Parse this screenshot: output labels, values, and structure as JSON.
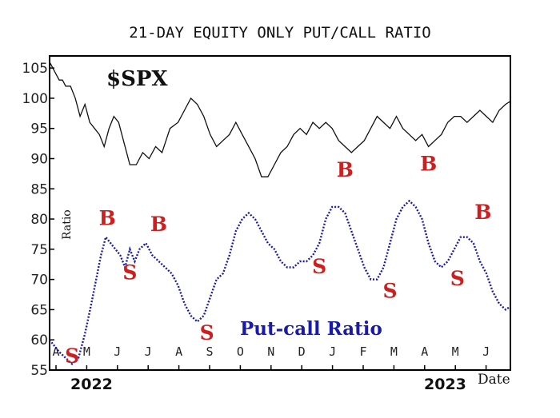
{
  "chart_data": {
    "type": "line",
    "title": "21-DAY EQUITY ONLY PUT/CALL RATIO",
    "ylabel": "Ratio",
    "xlabel": "Date",
    "ylim": [
      55,
      107
    ],
    "yticks": [
      55,
      60,
      65,
      70,
      75,
      80,
      85,
      90,
      95,
      100,
      105
    ],
    "months": [
      "A",
      "M",
      "J",
      "J",
      "A",
      "S",
      "O",
      "N",
      "D",
      "J",
      "F",
      "M",
      "A",
      "M",
      "J"
    ],
    "years": [
      "2022",
      "2023"
    ],
    "grid": false,
    "series": [
      {
        "name": "$SPX",
        "color": "#111111",
        "x": [
          0,
          2,
          4,
          6,
          8,
          10,
          13,
          16,
          19,
          22,
          25,
          28,
          31,
          34,
          37,
          40,
          43,
          46,
          50,
          54,
          58,
          62,
          66,
          70,
          75,
          80,
          84,
          88,
          92,
          96,
          100,
          104,
          108,
          112,
          116,
          120,
          124,
          128,
          132,
          136,
          140,
          144,
          148,
          152,
          156,
          160,
          164,
          168,
          172,
          176,
          180,
          184,
          188,
          192,
          196,
          200,
          204,
          208,
          212,
          216,
          220,
          224,
          228,
          232,
          236,
          240,
          244,
          248,
          252,
          256,
          260,
          264,
          268,
          272,
          276,
          280,
          284,
          287
        ],
        "values": [
          106,
          105,
          104,
          103,
          103,
          102,
          102,
          100,
          97,
          99,
          96,
          95,
          94,
          92,
          95,
          97,
          96,
          93,
          89,
          89,
          91,
          90,
          92,
          91,
          95,
          96,
          98,
          100,
          99,
          97,
          94,
          92,
          93,
          94,
          96,
          94,
          92,
          90,
          87,
          87,
          89,
          91,
          92,
          94,
          95,
          94,
          96,
          95,
          96,
          95,
          93,
          92,
          91,
          92,
          93,
          95,
          97,
          96,
          95,
          97,
          95,
          94,
          93,
          94,
          92,
          93,
          94,
          96,
          97,
          97,
          96,
          97,
          98,
          97,
          96,
          98,
          99,
          99.5
        ]
      },
      {
        "name": "Put-call Ratio",
        "color": "#1a1aa8",
        "x": [
          0,
          3,
          6,
          10,
          14,
          18,
          22,
          26,
          29,
          32,
          35,
          38,
          41,
          44,
          47,
          50,
          53,
          56,
          60,
          64,
          68,
          72,
          76,
          80,
          84,
          88,
          92,
          96,
          100,
          104,
          108,
          112,
          116,
          120,
          124,
          128,
          132,
          136,
          140,
          144,
          148,
          152,
          156,
          160,
          164,
          168,
          172,
          176,
          180,
          184,
          188,
          192,
          196,
          200,
          204,
          208,
          212,
          216,
          220,
          224,
          228,
          232,
          236,
          240,
          244,
          248,
          252,
          256,
          260,
          264,
          268,
          272,
          276,
          280,
          284,
          287
        ],
        "values": [
          60,
          59,
          58,
          57,
          56,
          57,
          61,
          66,
          70,
          74,
          77,
          76,
          75,
          74,
          72,
          75,
          73,
          75,
          76,
          74,
          73,
          72,
          71,
          69,
          66,
          64,
          63,
          64,
          67,
          70,
          71,
          74,
          78,
          80,
          81,
          80,
          78,
          76,
          75,
          73,
          72,
          72,
          73,
          73,
          74,
          76,
          80,
          82,
          82,
          81,
          78,
          75,
          72,
          70,
          70,
          72,
          76,
          80,
          82,
          83,
          82,
          80,
          76,
          73,
          72,
          73,
          75,
          77,
          77,
          76,
          73,
          71,
          68,
          66,
          65,
          65.5
        ]
      }
    ],
    "annotations": {
      "spx_label": "$SPX",
      "pcr_label": "Put-call Ratio",
      "markers": [
        {
          "text": "S",
          "day": 14,
          "value": 56.2
        },
        {
          "text": "B",
          "day": 36,
          "value": 79.0
        },
        {
          "text": "S",
          "day": 50,
          "value": 70.0
        },
        {
          "text": "B",
          "day": 68,
          "value": 78.0
        },
        {
          "text": "S",
          "day": 98,
          "value": 60.0
        },
        {
          "text": "S",
          "day": 168,
          "value": 71.0
        },
        {
          "text": "B",
          "day": 184,
          "value": 87.0
        },
        {
          "text": "S",
          "day": 212,
          "value": 67.0
        },
        {
          "text": "B",
          "day": 236,
          "value": 88.0
        },
        {
          "text": "S",
          "day": 254,
          "value": 69.0
        },
        {
          "text": "B",
          "day": 270,
          "value": 80.0
        }
      ]
    }
  }
}
